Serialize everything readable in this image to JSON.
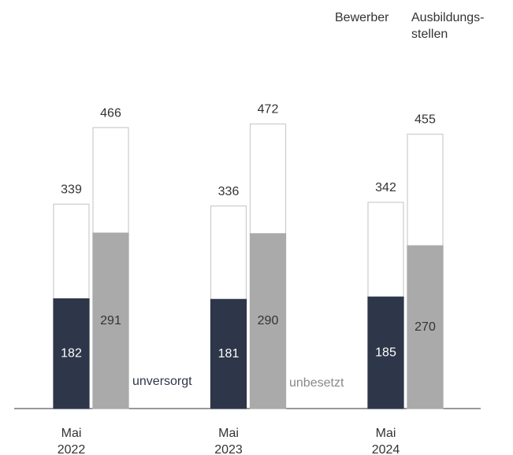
{
  "chart_data": {
    "type": "bar",
    "categories": [
      "Mai\n2022",
      "Mai\n2023",
      "Mai\n2024"
    ],
    "series": [
      {
        "name": "Bewerber",
        "color": "#ffffff",
        "values": [
          339,
          336,
          342
        ]
      },
      {
        "name": "unversorgt",
        "color": "#2e3649",
        "values": [
          182,
          181,
          185
        ]
      },
      {
        "name": "Ausbildungs-\nstellen",
        "color": "#ffffff",
        "values": [
          466,
          472,
          455
        ]
      },
      {
        "name": "unbesetzt",
        "color": "#aaaaaa",
        "values": [
          291,
          290,
          270
        ]
      }
    ],
    "ylim": [
      0,
      600
    ]
  }
}
